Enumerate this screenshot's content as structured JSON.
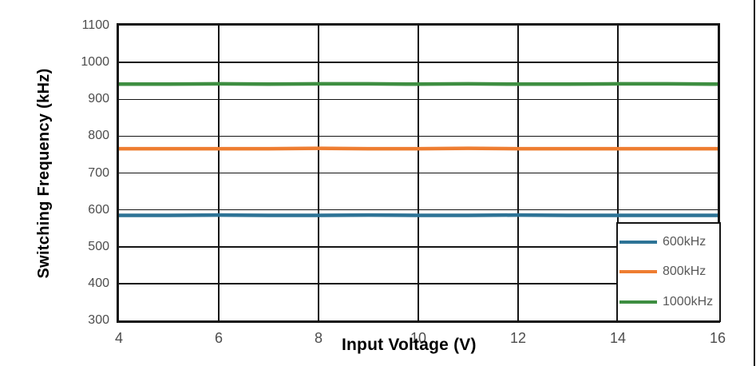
{
  "chart_data": {
    "type": "line",
    "title": "",
    "xlabel": "Input Voltage (V)",
    "ylabel": "Switching Frequency (kHz)",
    "xlim": [
      4,
      16
    ],
    "ylim": [
      300,
      1100
    ],
    "x_ticks": [
      "4",
      "6",
      "8",
      "10",
      "12",
      "14",
      "16"
    ],
    "y_ticks": [
      "300",
      "400",
      "500",
      "600",
      "700",
      "800",
      "900",
      "1000",
      "1100"
    ],
    "grid": true,
    "legend_position": "bottom-right",
    "x": [
      4,
      5,
      6,
      7,
      8,
      9,
      10,
      11,
      12,
      13,
      14,
      15,
      16
    ],
    "series": [
      {
        "name": "600kHz",
        "color": "#2D7396",
        "values": [
          585,
          585,
          586,
          585,
          585,
          586,
          585,
          585,
          586,
          585,
          585,
          585,
          585
        ]
      },
      {
        "name": "800kHz",
        "color": "#EE7D31",
        "values": [
          766,
          766,
          766,
          766,
          767,
          766,
          766,
          767,
          766,
          766,
          766,
          766,
          766
        ]
      },
      {
        "name": "1000kHz",
        "color": "#3E8E41",
        "values": [
          941,
          941,
          942,
          941,
          942,
          942,
          941,
          942,
          941,
          941,
          942,
          942,
          941
        ]
      }
    ],
    "colors": {
      "grid_line": "#141414",
      "frame_border": "#141414",
      "tick_text": "#4d4d4d",
      "legend_text": "#595959",
      "axis_title_text": "#000000",
      "background": "#ffffff"
    }
  }
}
